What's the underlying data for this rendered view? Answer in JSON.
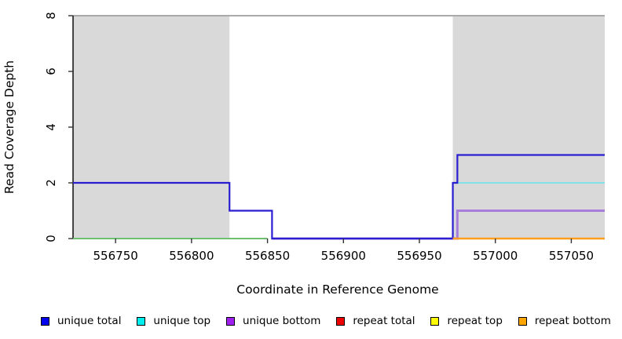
{
  "legend": {
    "items": [
      {
        "label": "unique total",
        "color": "#0000ee"
      },
      {
        "label": "unique top",
        "color": "#00eeee"
      },
      {
        "label": "unique bottom",
        "color": "#a020f0"
      },
      {
        "label": "repeat total",
        "color": "#ee0000"
      },
      {
        "label": "repeat top",
        "color": "#ffff00"
      },
      {
        "label": "repeat bottom",
        "color": "#ffa500"
      }
    ]
  },
  "chart_data": {
    "type": "line",
    "step": true,
    "title": "",
    "xlabel": "Coordinate in Reference Genome",
    "ylabel": "Read Coverage Depth",
    "xlim": [
      556722,
      557072
    ],
    "ylim": [
      0,
      8
    ],
    "xticks": [
      556750,
      556800,
      556850,
      556900,
      556950,
      557000,
      557050
    ],
    "yticks": [
      0,
      2,
      4,
      6,
      8
    ],
    "grid": false,
    "legend_position": "bottom",
    "shaded_color": "#d9d9d9",
    "shaded_regions": [
      {
        "x0": 556722,
        "x1": 556825
      },
      {
        "x0": 556972,
        "x1": 557072
      }
    ],
    "series": [
      {
        "name": "unique total",
        "line_color": "#2a1fd0",
        "points": [
          [
            556722,
            2
          ],
          [
            556825,
            2
          ],
          [
            556825,
            1
          ],
          [
            556853,
            1
          ],
          [
            556853,
            0
          ],
          [
            556972,
            0
          ],
          [
            556972,
            2
          ],
          [
            556975,
            2
          ],
          [
            556975,
            3
          ],
          [
            557072,
            3
          ]
        ]
      },
      {
        "name": "unique top",
        "line_color": "#80e2e6",
        "points": [
          [
            556972,
            0
          ],
          [
            556972,
            2
          ],
          [
            557072,
            2
          ]
        ]
      },
      {
        "name": "unique bottom",
        "line_color": "#a77fdb",
        "points": [
          [
            556853,
            0
          ],
          [
            556975,
            0
          ],
          [
            556975,
            1
          ],
          [
            557072,
            1
          ]
        ]
      },
      {
        "name": "repeat total",
        "line_color": "#ee0000",
        "points": [
          [
            556972,
            0
          ],
          [
            557072,
            0
          ]
        ]
      },
      {
        "name": "repeat top",
        "line_color": "#ffff00",
        "points": [
          [
            556722,
            0
          ],
          [
            556850,
            0
          ]
        ]
      },
      {
        "name": "repeat bottom",
        "line_color": "#ff9d1e",
        "points": [
          [
            556972,
            0
          ],
          [
            557072,
            0
          ]
        ]
      }
    ],
    "overlap_lines": [
      {
        "name": "unique-top-repeat-top-overlap",
        "line_color": "#6fbf73",
        "points": [
          [
            556722,
            0
          ],
          [
            556850,
            0
          ]
        ]
      }
    ]
  }
}
